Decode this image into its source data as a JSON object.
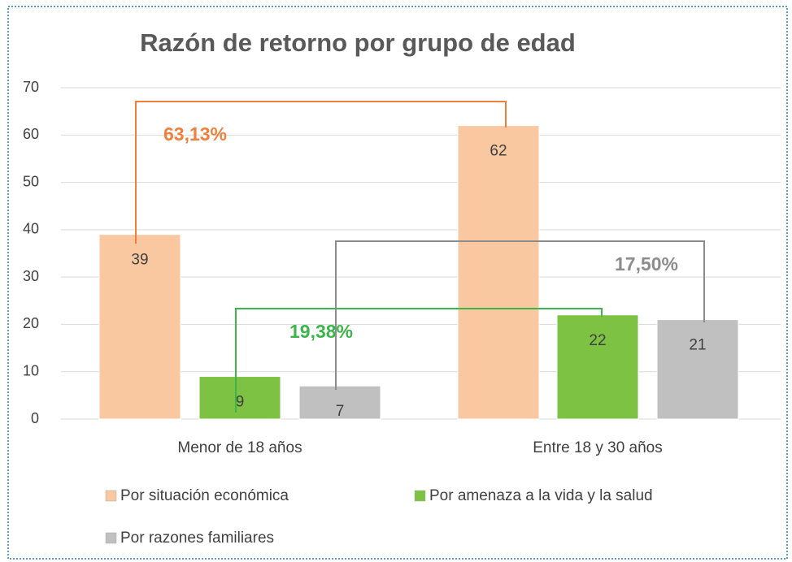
{
  "chart_data": {
    "type": "bar",
    "title": "Razón de retorno por grupo de edad",
    "categories": [
      "Menor de 18 años",
      "Entre 18 y 30 años"
    ],
    "series": [
      {
        "name": "Por situación económica",
        "color": "#f9c8a0",
        "values": [
          39,
          62
        ]
      },
      {
        "name": "Por amenaza a la vida y la salud",
        "color": "#7dc242",
        "values": [
          9,
          22
        ]
      },
      {
        "name": "Por razones familiares",
        "color": "#c0c0c0",
        "values": [
          7,
          21
        ]
      }
    ],
    "ylim": [
      0,
      70
    ],
    "yticks": [
      0,
      10,
      20,
      30,
      40,
      50,
      60,
      70
    ],
    "grid": true,
    "annotations": [
      {
        "text": "63,13%",
        "color": "#f07f3c"
      },
      {
        "text": "19,38%",
        "color": "#3cb54a"
      },
      {
        "text": "17,50%",
        "color": "#8c8c8c"
      }
    ]
  }
}
